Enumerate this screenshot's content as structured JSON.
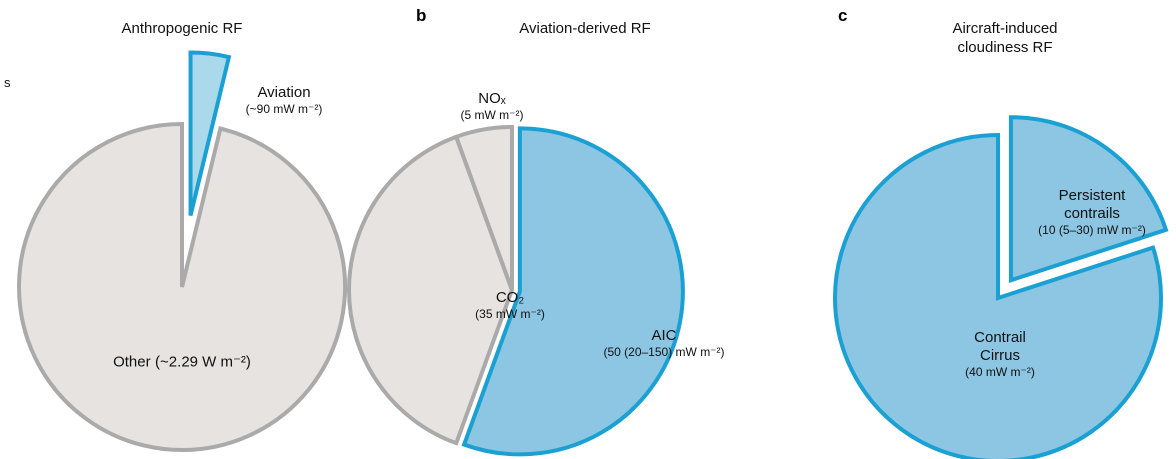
{
  "fragments": [
    "s"
  ],
  "chart_data": [
    {
      "type": "pie",
      "title": "Anthropogenic RF",
      "categories": [
        "Aviation",
        "Other"
      ],
      "values": [
        90,
        2290
      ],
      "value_labels": [
        "(~90 mW m⁻²)",
        "(~2.29 W m⁻²)"
      ],
      "colors": [
        "#a9d9ea",
        "#e6e3e0"
      ],
      "edge_colors": [
        "#1aa0d2",
        "#aaaaaa"
      ],
      "exploded": "Aviation"
    },
    {
      "type": "pie",
      "panel": "b",
      "title": "Aviation-derived RF",
      "categories": [
        "AIC",
        "CO₂",
        "NOₓ"
      ],
      "values": [
        50,
        35,
        5
      ],
      "value_labels": [
        "(50 (20–150) mW m⁻²)",
        "(35 mW m⁻²)",
        "(5 mW m⁻²)"
      ],
      "colors": [
        "#8cc6e3",
        "#e6e3e0",
        "#e6e3e0"
      ],
      "edge_colors": [
        "#1aa0d2",
        "#aaaaaa",
        "#aaaaaa"
      ],
      "exploded": "AIC"
    },
    {
      "type": "pie",
      "panel": "c",
      "title": "Aircraft-induced cloudiness RF",
      "categories": [
        "Persistent contrails",
        "Contrail Cirrus"
      ],
      "values": [
        10,
        40
      ],
      "value_labels": [
        "(10 (5–30) mW m⁻²)",
        "(40 mW m⁻²)"
      ],
      "colors": [
        "#8cc6e3",
        "#8cc6e3"
      ],
      "edge_colors": [
        "#1aa0d2",
        "#1aa0d2"
      ],
      "exploded": "Persistent contrails"
    }
  ]
}
